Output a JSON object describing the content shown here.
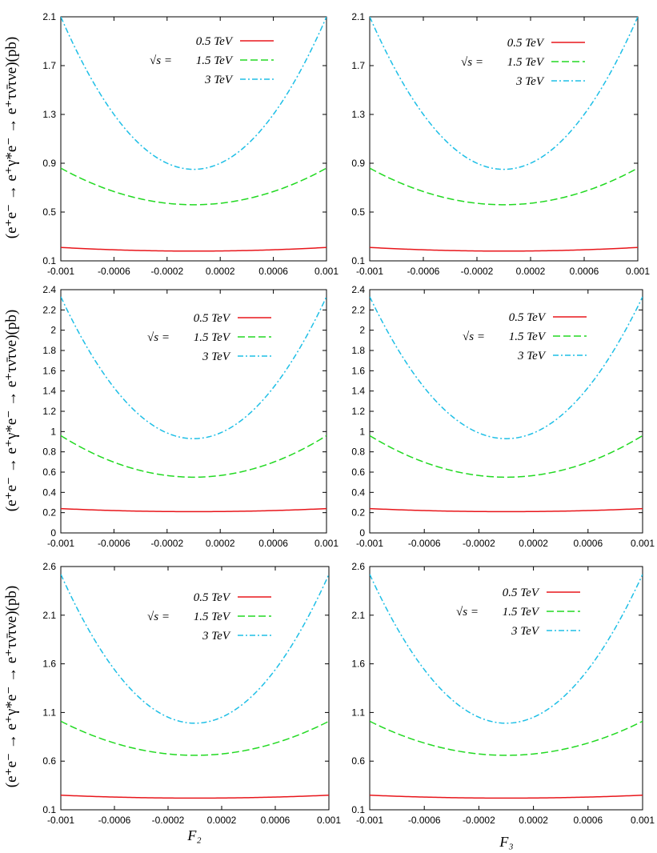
{
  "figure": {
    "ylabel": "(e⁺e⁻ → e⁺γ*e⁻ → e⁺τν̄τνe)(pb)",
    "xlabel_left": "F₂",
    "xlabel_right": "F₃",
    "legend_prefix": "√s  =",
    "colors": {
      "0.5 TeV": "#e8161b",
      "1.5 TeV": "#22d922",
      "3 TeV": "#1ebfe6"
    }
  },
  "chart_data": [
    {
      "type": "line",
      "panel": "row1-left",
      "xlim": [
        -0.001,
        0.001
      ],
      "ylim": [
        0.1,
        2.1
      ],
      "xticks": [
        "-0.001",
        "-0.0006",
        "-0.0002",
        "0.0002",
        "0.0006",
        "0.001"
      ],
      "yticks": [
        "0.1",
        "0.5",
        "0.9",
        "1.3",
        "1.7",
        "2.1"
      ],
      "ytick_values": [
        0.1,
        0.5,
        0.9,
        1.3,
        1.7,
        2.1
      ],
      "series": [
        {
          "name": "0.5 TeV",
          "x": [
            -0.001,
            -0.0006,
            -0.0002,
            0,
            0.0002,
            0.0006,
            0.001
          ],
          "y": [
            0.21,
            0.19,
            0.18,
            0.18,
            0.18,
            0.19,
            0.21
          ]
        },
        {
          "name": "1.5 TeV",
          "x": [
            -0.001,
            -0.0006,
            -0.0002,
            0,
            0.0002,
            0.0006,
            0.001
          ],
          "y": [
            0.86,
            0.66,
            0.57,
            0.56,
            0.57,
            0.66,
            0.86
          ]
        },
        {
          "name": "3 TeV",
          "x": [
            -0.001,
            -0.0006,
            -0.0002,
            0,
            0.0002,
            0.0006,
            0.001
          ],
          "y": [
            2.1,
            1.25,
            0.88,
            0.85,
            0.88,
            1.25,
            2.1
          ]
        }
      ]
    },
    {
      "type": "line",
      "panel": "row1-right",
      "xlim": [
        -0.001,
        0.001
      ],
      "ylim": [
        0.1,
        2.1
      ],
      "xticks": [
        "-0.001",
        "-0.0006",
        "-0.0002",
        "0.0002",
        "0.0006",
        "0.001"
      ],
      "yticks": [
        "0.1",
        "0.5",
        "0.9",
        "1.3",
        "1.7",
        "2.1"
      ],
      "ytick_values": [
        0.1,
        0.5,
        0.9,
        1.3,
        1.7,
        2.1
      ],
      "series": [
        {
          "name": "0.5 TeV",
          "x": [
            -0.001,
            -0.0006,
            -0.0002,
            0,
            0.0002,
            0.0006,
            0.001
          ],
          "y": [
            0.21,
            0.19,
            0.18,
            0.18,
            0.18,
            0.19,
            0.21
          ]
        },
        {
          "name": "1.5 TeV",
          "x": [
            -0.001,
            -0.0006,
            -0.0002,
            0,
            0.0002,
            0.0006,
            0.001
          ],
          "y": [
            0.86,
            0.66,
            0.57,
            0.56,
            0.57,
            0.66,
            0.86
          ]
        },
        {
          "name": "3 TeV",
          "x": [
            -0.001,
            -0.0006,
            -0.0002,
            0,
            0.0002,
            0.0006,
            0.001
          ],
          "y": [
            2.1,
            1.25,
            0.88,
            0.85,
            0.88,
            1.25,
            2.1
          ]
        }
      ]
    },
    {
      "type": "line",
      "panel": "row2-left",
      "xlim": [
        -0.001,
        0.001
      ],
      "ylim": [
        0,
        2.4
      ],
      "xticks": [
        "-0.001",
        "-0.0006",
        "-0.0002",
        "0.0002",
        "0.0006",
        "0.001"
      ],
      "yticks": [
        "0",
        "0.2",
        "0.4",
        "0.6",
        "0.8",
        "1",
        "1.2",
        "1.4",
        "1.6",
        "1.8",
        "2",
        "2.2",
        "2.4"
      ],
      "ytick_values": [
        0,
        0.2,
        0.4,
        0.6,
        0.8,
        1,
        1.2,
        1.4,
        1.6,
        1.8,
        2,
        2.2,
        2.4
      ],
      "series": [
        {
          "name": "0.5 TeV",
          "x": [
            -0.001,
            -0.0006,
            -0.0002,
            0,
            0.0002,
            0.0006,
            0.001
          ],
          "y": [
            0.24,
            0.22,
            0.21,
            0.21,
            0.21,
            0.22,
            0.24
          ]
        },
        {
          "name": "1.5 TeV",
          "x": [
            -0.001,
            -0.0006,
            -0.0002,
            0,
            0.0002,
            0.0006,
            0.001
          ],
          "y": [
            0.96,
            0.7,
            0.57,
            0.55,
            0.57,
            0.7,
            0.96
          ]
        },
        {
          "name": "3 TeV",
          "x": [
            -0.001,
            -0.0006,
            -0.0002,
            0,
            0.0002,
            0.0006,
            0.001
          ],
          "y": [
            2.33,
            1.4,
            0.97,
            0.93,
            0.97,
            1.4,
            2.33
          ]
        }
      ]
    },
    {
      "type": "line",
      "panel": "row2-right",
      "xlim": [
        -0.001,
        0.001
      ],
      "ylim": [
        0,
        2.4
      ],
      "xticks": [
        "-0.001",
        "-0.0006",
        "-0.0002",
        "0.0002",
        "0.0006",
        "0.001"
      ],
      "yticks": [
        "0",
        "0.2",
        "0.4",
        "0.6",
        "0.8",
        "1",
        "1.2",
        "1.4",
        "1.6",
        "1.8",
        "2",
        "2.2",
        "2.4"
      ],
      "ytick_values": [
        0,
        0.2,
        0.4,
        0.6,
        0.8,
        1,
        1.2,
        1.4,
        1.6,
        1.8,
        2,
        2.2,
        2.4
      ],
      "series": [
        {
          "name": "0.5 TeV",
          "x": [
            -0.001,
            -0.0006,
            -0.0002,
            0,
            0.0002,
            0.0006,
            0.001
          ],
          "y": [
            0.24,
            0.22,
            0.21,
            0.21,
            0.21,
            0.22,
            0.24
          ]
        },
        {
          "name": "1.5 TeV",
          "x": [
            -0.001,
            -0.0006,
            -0.0002,
            0,
            0.0002,
            0.0006,
            0.001
          ],
          "y": [
            0.96,
            0.7,
            0.57,
            0.55,
            0.57,
            0.7,
            0.96
          ]
        },
        {
          "name": "3 TeV",
          "x": [
            -0.001,
            -0.0006,
            -0.0002,
            0,
            0.0002,
            0.0006,
            0.001
          ],
          "y": [
            2.33,
            1.4,
            0.97,
            0.93,
            0.97,
            1.4,
            2.33
          ]
        }
      ]
    },
    {
      "type": "line",
      "panel": "row3-left",
      "xlim": [
        -0.001,
        0.001
      ],
      "ylim": [
        0.1,
        2.6
      ],
      "xticks": [
        "-0.001",
        "-0.0006",
        "-0.0002",
        "0.0002",
        "0.0006",
        "0.001"
      ],
      "yticks": [
        "0.1",
        "0.6",
        "1.1",
        "1.6",
        "2.1",
        "2.6"
      ],
      "ytick_values": [
        0.1,
        0.6,
        1.1,
        1.6,
        2.1,
        2.6
      ],
      "series": [
        {
          "name": "0.5 TeV",
          "x": [
            -0.001,
            -0.0006,
            -0.0002,
            0,
            0.0002,
            0.0006,
            0.001
          ],
          "y": [
            0.25,
            0.23,
            0.22,
            0.22,
            0.22,
            0.23,
            0.25
          ]
        },
        {
          "name": "1.5 TeV",
          "x": [
            -0.001,
            -0.0006,
            -0.0002,
            0,
            0.0002,
            0.0006,
            0.001
          ],
          "y": [
            1.01,
            0.78,
            0.67,
            0.66,
            0.67,
            0.78,
            1.01
          ]
        },
        {
          "name": "3 TeV",
          "x": [
            -0.001,
            -0.0006,
            -0.0002,
            0,
            0.0002,
            0.0006,
            0.001
          ],
          "y": [
            2.52,
            1.48,
            1.03,
            0.99,
            1.03,
            1.48,
            2.52
          ]
        }
      ]
    },
    {
      "type": "line",
      "panel": "row3-right",
      "xlim": [
        -0.001,
        0.001
      ],
      "ylim": [
        0.1,
        2.6
      ],
      "xticks": [
        "-0.001",
        "-0.0006",
        "-0.0002",
        "0.0002",
        "0.0006",
        "0.001"
      ],
      "yticks": [
        "0.1",
        "0.6",
        "1.1",
        "1.6",
        "2.1",
        "2.6"
      ],
      "ytick_values": [
        0.1,
        0.6,
        1.1,
        1.6,
        2.1,
        2.6
      ],
      "series": [
        {
          "name": "0.5 TeV",
          "x": [
            -0.001,
            -0.0006,
            -0.0002,
            0,
            0.0002,
            0.0006,
            0.001
          ],
          "y": [
            0.25,
            0.23,
            0.22,
            0.22,
            0.22,
            0.23,
            0.25
          ]
        },
        {
          "name": "1.5 TeV",
          "x": [
            -0.001,
            -0.0006,
            -0.0002,
            0,
            0.0002,
            0.0006,
            0.001
          ],
          "y": [
            1.01,
            0.78,
            0.67,
            0.66,
            0.67,
            0.78,
            1.01
          ]
        },
        {
          "name": "3 TeV",
          "x": [
            -0.001,
            -0.0006,
            -0.0002,
            0,
            0.0002,
            0.0006,
            0.001
          ],
          "y": [
            2.52,
            1.48,
            1.03,
            0.99,
            1.03,
            1.48,
            2.52
          ]
        }
      ]
    }
  ]
}
